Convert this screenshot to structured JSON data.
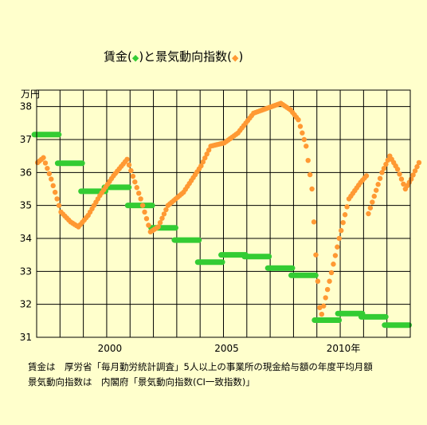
{
  "chart_data": {
    "type": "scatter",
    "title": {
      "prefix": "賃金(",
      "wage_marker": "◆",
      "middle": ")と景気動向指数(",
      "index_marker": "◆",
      "suffix": ")"
    },
    "ylabel": "万円",
    "ylim": [
      31,
      38.5
    ],
    "y_ticks": [
      31,
      32,
      33,
      34,
      35,
      36,
      37,
      38
    ],
    "xlim": [
      1997,
      2013
    ],
    "x_tick_labels": [
      {
        "x": 2000,
        "label": "2000"
      },
      {
        "x": 2005,
        "label": "2005"
      },
      {
        "x": 2010,
        "label": "2010年"
      }
    ],
    "grid": true,
    "series": [
      {
        "name": "賃金",
        "color": "#33cc33",
        "style": "annual-step",
        "x": [
          1997,
          1998,
          1999,
          2000,
          2001,
          2002,
          2003,
          2004,
          2005,
          2006,
          2007,
          2008,
          2009,
          2010,
          2011,
          2012
        ],
        "values": [
          37.15,
          36.28,
          35.43,
          35.55,
          35.0,
          34.32,
          33.95,
          33.28,
          33.5,
          33.45,
          33.1,
          32.88,
          31.52,
          31.72,
          31.62,
          31.37
        ]
      },
      {
        "name": "景気動向指数",
        "color": "#ff9933",
        "style": "monthly-points",
        "start": "1997-01",
        "knots": [
          [
            "1997-01",
            36.3
          ],
          [
            "1997-04",
            36.45
          ],
          [
            "1997-08",
            35.8
          ],
          [
            "1998-01",
            34.8
          ],
          [
            "1998-06",
            34.5
          ],
          [
            "1998-10",
            34.35
          ],
          [
            "1999-03",
            34.7
          ],
          [
            "1999-09",
            35.3
          ],
          [
            "2000-04",
            35.9
          ],
          [
            "2000-11",
            36.4
          ],
          [
            "2001-06",
            35.2
          ],
          [
            "2001-11",
            34.2
          ],
          [
            "2002-03",
            34.35
          ],
          [
            "2002-08",
            35.0
          ],
          [
            "2003-04",
            35.4
          ],
          [
            "2004-01",
            36.2
          ],
          [
            "2004-06",
            36.8
          ],
          [
            "2005-01",
            36.9
          ],
          [
            "2005-08",
            37.2
          ],
          [
            "2006-04",
            37.8
          ],
          [
            "2006-11",
            37.95
          ],
          [
            "2007-06",
            38.1
          ],
          [
            "2007-11",
            37.9
          ],
          [
            "2008-03",
            37.6
          ],
          [
            "2008-07",
            36.8
          ],
          [
            "2008-10",
            35.5
          ],
          [
            "2008-12",
            33.5
          ],
          [
            "2009-02",
            31.9
          ],
          [
            "2009-03",
            31.7
          ],
          [
            "2009-07",
            32.7
          ],
          [
            "2009-12",
            34.0
          ],
          [
            "2010-05",
            35.2
          ],
          [
            "2010-11",
            35.7
          ],
          [
            "2011-02",
            35.9
          ],
          [
            "2011-03",
            34.75
          ],
          [
            "2011-05",
            35.1
          ],
          [
            "2011-10",
            36.0
          ],
          [
            "2012-02",
            36.5
          ],
          [
            "2012-06",
            36.1
          ],
          [
            "2012-10",
            35.5
          ],
          [
            "2013-01",
            35.8
          ],
          [
            "2013-05",
            36.3
          ]
        ]
      }
    ]
  },
  "notes": [
    "賃金は　厚労省「毎月勤労統計調査」5人以上の事業所の現金給与額の年度平均月額",
    "景気動向指数は　内閣府「景気動向指数(CI一致指数)」"
  ]
}
